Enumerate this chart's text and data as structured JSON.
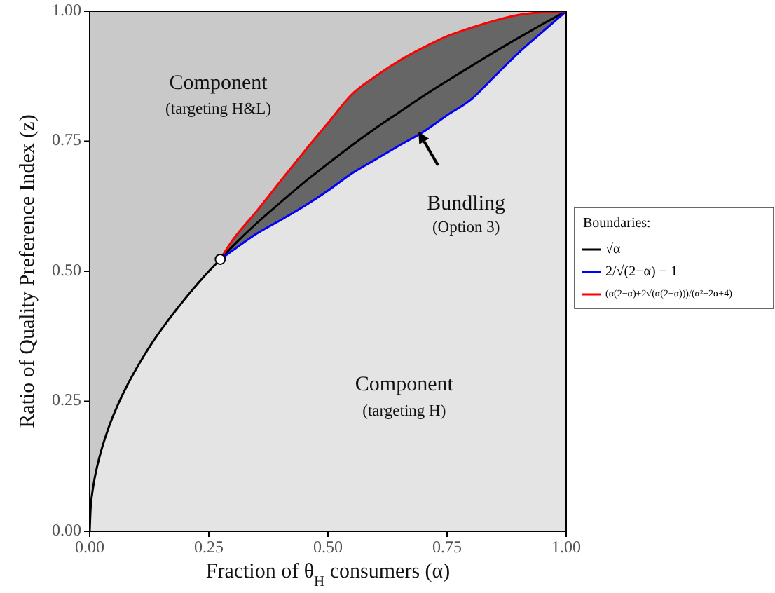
{
  "chart_data": {
    "type": "line",
    "xlabel": "Fraction of θ$_{H}$ consumers (α)",
    "ylabel": "Ratio of Quality Preference Index (z)",
    "legend_title": "Boundaries:",
    "legend": "right",
    "xlim": [
      0,
      1
    ],
    "ylim": [
      0,
      1
    ],
    "xticks": [
      {
        "value": 0,
        "label": "0.00"
      },
      {
        "value": 0.25,
        "label": "0.25"
      },
      {
        "value": 0.5,
        "label": "0.50"
      },
      {
        "value": 0.75,
        "label": "0.75"
      },
      {
        "value": 1,
        "label": "1.00"
      }
    ],
    "yticks": [
      {
        "value": 0,
        "label": "0.00"
      },
      {
        "value": 0.25,
        "label": "0.25"
      },
      {
        "value": 0.5,
        "label": "0.50"
      },
      {
        "value": 0.75,
        "label": "0.75"
      },
      {
        "value": 1,
        "label": "1.00"
      }
    ],
    "series": [
      {
        "name": "√α",
        "color": "#000000",
        "x": [
          0,
          0.002,
          0.005,
          0.01,
          0.02,
          0.04,
          0.06,
          0.08,
          0.1,
          0.13,
          0.16,
          0.2,
          0.25,
          0.274,
          0.3,
          0.35,
          0.4,
          0.45,
          0.5,
          0.55,
          0.6,
          0.65,
          0.7,
          0.75,
          0.8,
          0.85,
          0.9,
          0.95,
          1
        ],
        "values": [
          0,
          0.045,
          0.071,
          0.1,
          0.141,
          0.2,
          0.245,
          0.283,
          0.316,
          0.361,
          0.4,
          0.447,
          0.5,
          0.523,
          0.548,
          0.592,
          0.632,
          0.671,
          0.707,
          0.742,
          0.775,
          0.806,
          0.837,
          0.866,
          0.894,
          0.922,
          0.949,
          0.975,
          1
        ]
      },
      {
        "name": "2/√(2−α) − 1",
        "color": "#0000ff",
        "x": [
          0.274,
          0.3,
          0.35,
          0.4,
          0.45,
          0.5,
          0.55,
          0.6,
          0.65,
          0.7,
          0.75,
          0.8,
          0.85,
          0.9,
          0.95,
          1
        ],
        "values": [
          0.523,
          0.54,
          0.572,
          0.598,
          0.625,
          0.655,
          0.688,
          0.715,
          0.742,
          0.768,
          0.8,
          0.83,
          0.875,
          0.92,
          0.96,
          1
        ]
      },
      {
        "name": "(α(2−α)+2√(α(2−α)))/(α²−2α+4)",
        "color": "#ff0000",
        "x": [
          0.274,
          0.3,
          0.35,
          0.4,
          0.45,
          0.5,
          0.55,
          0.6,
          0.65,
          0.7,
          0.75,
          0.8,
          0.85,
          0.9,
          0.95,
          1
        ],
        "values": [
          0.523,
          0.56,
          0.615,
          0.673,
          0.73,
          0.785,
          0.84,
          0.875,
          0.905,
          0.93,
          0.952,
          0.968,
          0.982,
          0.993,
          0.998,
          1
        ]
      },
      {
        "type": "scatter",
        "marker": "circle",
        "color": "#ffffff",
        "x": [
          0.274
        ],
        "values": [
          0.523
        ]
      }
    ],
    "annotations": [
      "Component",
      "(targeting H&L)",
      "Bundling",
      "(Option 3)",
      "Component",
      "(targeting H)"
    ]
  }
}
